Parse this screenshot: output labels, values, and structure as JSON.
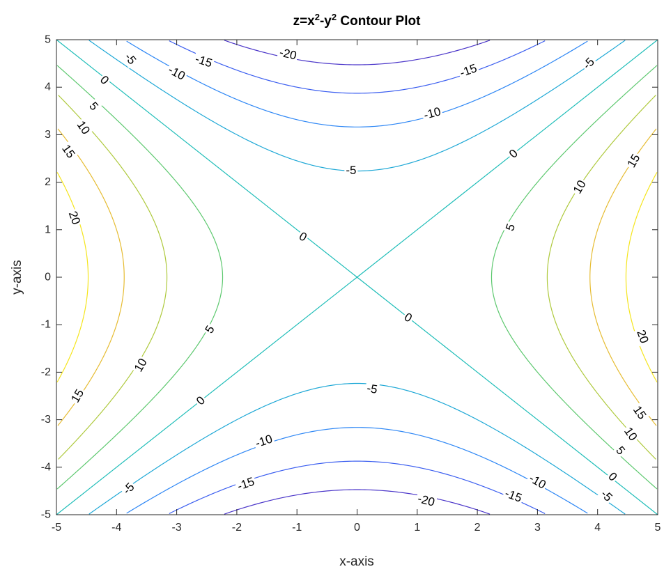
{
  "chart_data": {
    "type": "contour",
    "title": "z=x²-y² Contour Plot",
    "title_parts": {
      "prefix": "z=x",
      "sup1": "2",
      "middle": "-y",
      "sup2": "2",
      "suffix": " Contour Plot"
    },
    "xlabel": "x-axis",
    "ylabel": "y-axis",
    "function": "x^2 - y^2",
    "xlim": [
      -5,
      5
    ],
    "ylim": [
      -5,
      5
    ],
    "xticks": [
      -5,
      -4,
      -3,
      -2,
      -1,
      0,
      1,
      2,
      3,
      4,
      5
    ],
    "yticks": [
      -5,
      -4,
      -3,
      -2,
      -1,
      0,
      1,
      2,
      3,
      4,
      5
    ],
    "xtick_labels": [
      "-5",
      "-4",
      "-3",
      "-2",
      "-1",
      "0",
      "1",
      "2",
      "3",
      "4",
      "5"
    ],
    "ytick_labels": [
      "-5",
      "-4",
      "-3",
      "-2",
      "-1",
      "0",
      "1",
      "2",
      "3",
      "4",
      "5"
    ],
    "grid": false,
    "levels": [
      {
        "value": -20,
        "color": "#4a35c9"
      },
      {
        "value": -15,
        "color": "#3b5ef0"
      },
      {
        "value": -10,
        "color": "#2e87f5"
      },
      {
        "value": -5,
        "color": "#1ea8d6"
      },
      {
        "value": 0,
        "color": "#1ebdb8"
      },
      {
        "value": 5,
        "color": "#5cc86e"
      },
      {
        "value": 10,
        "color": "#aec93c"
      },
      {
        "value": 15,
        "color": "#e6bc32"
      },
      {
        "value": 20,
        "color": "#f5e51c"
      }
    ],
    "contour_labels": [
      {
        "text": "-5",
        "x": -3.77,
        "y": 4.6,
        "angle": 50
      },
      {
        "text": "0",
        "x": -4.2,
        "y": 4.15,
        "angle": 45
      },
      {
        "text": "5",
        "x": -4.38,
        "y": 3.6,
        "angle": 50
      },
      {
        "text": "10",
        "x": -4.55,
        "y": 3.15,
        "angle": 55
      },
      {
        "text": "15",
        "x": -4.8,
        "y": 2.65,
        "angle": 55
      },
      {
        "text": "20",
        "x": -4.7,
        "y": 1.25,
        "angle": 70
      },
      {
        "text": "-15",
        "x": -2.55,
        "y": 4.55,
        "angle": 18
      },
      {
        "text": "-10",
        "x": -3.0,
        "y": 4.3,
        "angle": 28
      },
      {
        "text": "-20",
        "x": -1.15,
        "y": 4.7,
        "angle": 13
      },
      {
        "text": "-15",
        "x": 1.85,
        "y": 4.35,
        "angle": -20
      },
      {
        "text": "-10",
        "x": 1.25,
        "y": 3.45,
        "angle": -15
      },
      {
        "text": "-5",
        "x": -0.1,
        "y": 2.25,
        "angle": 0
      },
      {
        "text": "-5",
        "x": 3.85,
        "y": 4.5,
        "angle": -45
      },
      {
        "text": "0",
        "x": 2.6,
        "y": 2.6,
        "angle": -45
      },
      {
        "text": "10",
        "x": 3.7,
        "y": 1.9,
        "angle": -60
      },
      {
        "text": "15",
        "x": 4.6,
        "y": 2.45,
        "angle": -60
      },
      {
        "text": "5",
        "x": 2.55,
        "y": 1.05,
        "angle": -70
      },
      {
        "text": "0",
        "x": -0.9,
        "y": 0.85,
        "angle": 30
      },
      {
        "text": "0",
        "x": 0.85,
        "y": -0.85,
        "angle": 30
      },
      {
        "text": "5",
        "x": -2.45,
        "y": -1.1,
        "angle": -60
      },
      {
        "text": "10",
        "x": -3.6,
        "y": -1.85,
        "angle": -60
      },
      {
        "text": "15",
        "x": -4.65,
        "y": -2.5,
        "angle": -60
      },
      {
        "text": "0",
        "x": -2.6,
        "y": -2.6,
        "angle": -45
      },
      {
        "text": "-5",
        "x": 0.25,
        "y": -2.35,
        "angle": 10
      },
      {
        "text": "-10",
        "x": -1.55,
        "y": -3.45,
        "angle": -18
      },
      {
        "text": "-15",
        "x": -1.85,
        "y": -4.35,
        "angle": -20
      },
      {
        "text": "-5",
        "x": -3.8,
        "y": -4.45,
        "angle": -45
      },
      {
        "text": "-20",
        "x": 1.15,
        "y": -4.7,
        "angle": 15
      },
      {
        "text": "-15",
        "x": 2.6,
        "y": -4.6,
        "angle": 20
      },
      {
        "text": "-10",
        "x": 3.0,
        "y": -4.3,
        "angle": 30
      },
      {
        "text": "20",
        "x": 4.75,
        "y": -1.25,
        "angle": 70
      },
      {
        "text": "15",
        "x": 4.7,
        "y": -2.85,
        "angle": 55
      },
      {
        "text": "10",
        "x": 4.55,
        "y": -3.3,
        "angle": 55
      },
      {
        "text": "5",
        "x": 4.38,
        "y": -3.65,
        "angle": 50
      },
      {
        "text": "0",
        "x": 4.25,
        "y": -4.2,
        "angle": 45
      },
      {
        "text": "-5",
        "x": 4.15,
        "y": -4.6,
        "angle": 45
      }
    ]
  }
}
